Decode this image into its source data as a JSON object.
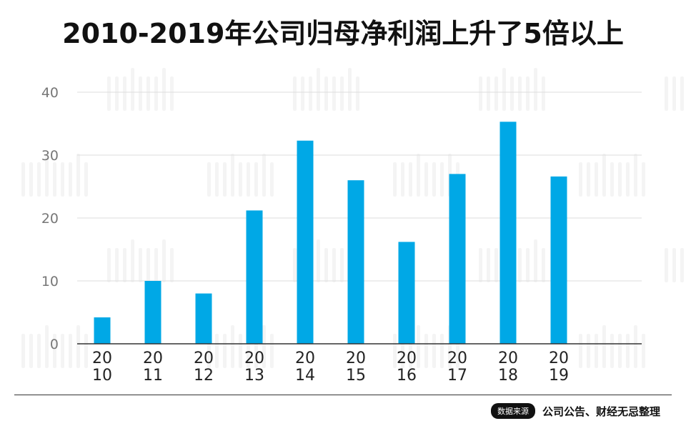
{
  "title": "2010-2019年公司归母净利润上升了5倍以上",
  "source_badge": "数据来源",
  "source_text": "公司公告、财经无忌整理",
  "colors": {
    "bar": "#00a8e6",
    "grid": "#dedede",
    "axis": "#333333",
    "tick_text": "#777777",
    "label_text": "#222222"
  },
  "chart_data": {
    "type": "bar",
    "title": "2010-2019年公司归母净利润上升了5倍以上",
    "xlabel": "",
    "ylabel": "",
    "categories": [
      [
        "20",
        "10"
      ],
      [
        "20",
        "11"
      ],
      [
        "20",
        "12"
      ],
      [
        "20",
        "13"
      ],
      [
        "20",
        "14"
      ],
      [
        "20",
        "15"
      ],
      [
        "20",
        "16"
      ],
      [
        "20",
        "17"
      ],
      [
        "20",
        "18"
      ],
      [
        "20",
        "19"
      ]
    ],
    "values": [
      4.2,
      10.0,
      8.0,
      21.2,
      32.3,
      26.0,
      16.2,
      27.0,
      35.3,
      26.6
    ],
    "ylim": [
      0,
      40
    ],
    "yticks": [
      0,
      10,
      20,
      30,
      40
    ],
    "grid": true,
    "legend": "none"
  }
}
